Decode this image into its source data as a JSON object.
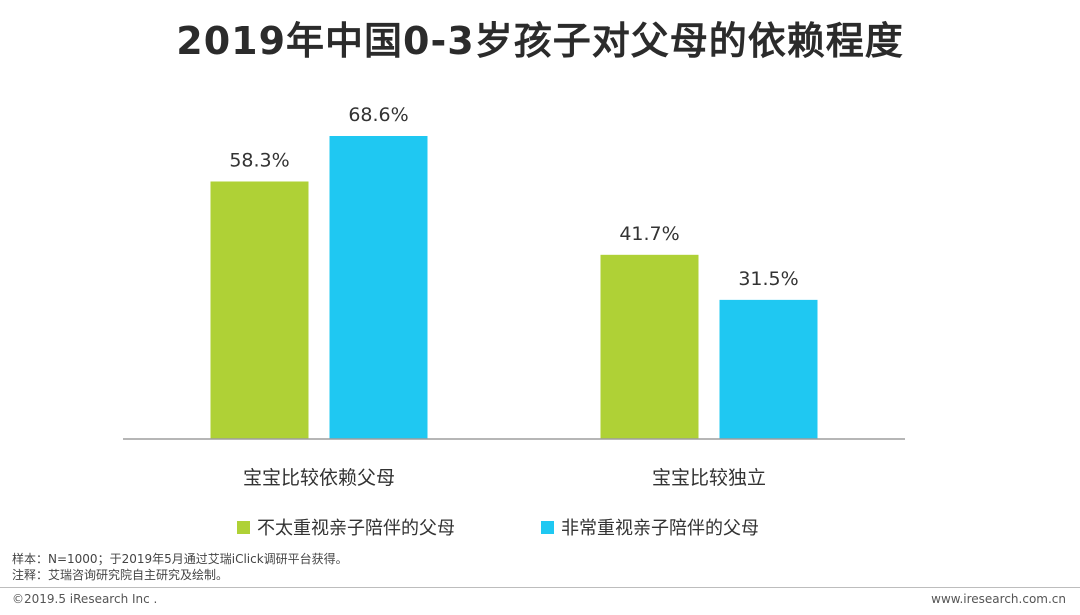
{
  "title": "2019年中国0-3岁孩子对父母的依赖程度",
  "chart_data": {
    "type": "bar",
    "categories": [
      "宝宝比较依赖父母",
      "宝宝比较独立"
    ],
    "series": [
      {
        "name": "不太重视亲子陪伴的父母",
        "values": [
          58.3,
          41.7
        ],
        "labels": [
          "58.3%",
          "41.7%"
        ],
        "color": "#afd136"
      },
      {
        "name": "非常重视亲子陪伴的父母",
        "values": [
          68.6,
          31.5
        ],
        "labels": [
          "68.6%",
          "31.5%"
        ],
        "color": "#1fc8f2"
      }
    ],
    "ylim": [
      0,
      68.6
    ],
    "grid": false,
    "legend_position": "bottom"
  },
  "notes": {
    "sample": "样本：N=1000；于2019年5月通过艾瑞iClick调研平台获得。",
    "remark": "注释：艾瑞咨询研究院自主研究及绘制。"
  },
  "footer": {
    "copyright": "©2019.5 iResearch Inc .",
    "website": "www.iresearch.com.cn"
  }
}
